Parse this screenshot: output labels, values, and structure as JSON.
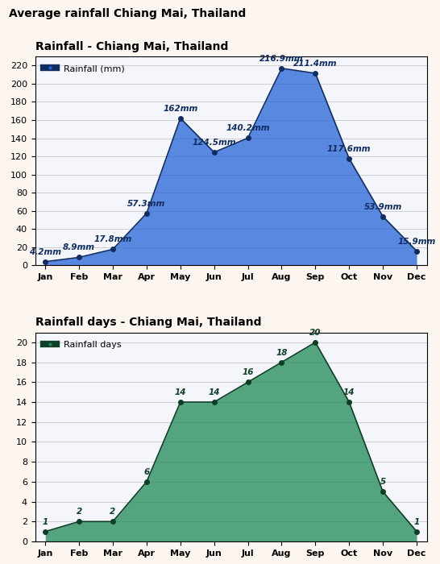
{
  "title": "Average rainfall Chiang Mai, Thailand",
  "chart_data": [
    {
      "type": "area",
      "title": "Rainfall - Chiang Mai, Thailand",
      "categories": [
        "Jan",
        "Feb",
        "Mar",
        "Apr",
        "May",
        "Jun",
        "Jul",
        "Aug",
        "Sep",
        "Oct",
        "Nov",
        "Dec"
      ],
      "series": [
        {
          "name": "Rainfall (mm)",
          "color": "#2563d9",
          "values": [
            4.2,
            8.9,
            17.8,
            57.3,
            162,
            124.5,
            140.2,
            216.9,
            211.4,
            117.6,
            53.9,
            15.9
          ],
          "value_labels": [
            "4.2mm",
            "8.9mm",
            "17.8mm",
            "57.3mm",
            "162mm",
            "124.5mm",
            "140.2mm",
            "216.9mm",
            "211.4mm",
            "117.6mm",
            "53.9mm",
            "15.9mm"
          ]
        }
      ],
      "ylim": [
        0,
        230
      ],
      "yticks": [
        0,
        20,
        40,
        60,
        80,
        100,
        120,
        140,
        160,
        180,
        200,
        220
      ],
      "grid": true,
      "legend": "upper left",
      "marker": "o",
      "data_labels": true
    },
    {
      "type": "area",
      "title": "Rainfall days - Chiang Mai, Thailand",
      "categories": [
        "Jan",
        "Feb",
        "Mar",
        "Apr",
        "May",
        "Jun",
        "Jul",
        "Aug",
        "Sep",
        "Oct",
        "Nov",
        "Dec"
      ],
      "series": [
        {
          "name": "Rainfall days",
          "color": "#1f8a55",
          "values": [
            1,
            2,
            2,
            6,
            14,
            14,
            16,
            18,
            20,
            14,
            5,
            1
          ]
        }
      ],
      "ylim": [
        0,
        21
      ],
      "yticks": [
        0,
        2,
        4,
        6,
        8,
        10,
        12,
        14,
        16,
        18,
        20
      ],
      "grid": true,
      "legend": "upper left",
      "marker": "o",
      "data_labels": true
    }
  ]
}
